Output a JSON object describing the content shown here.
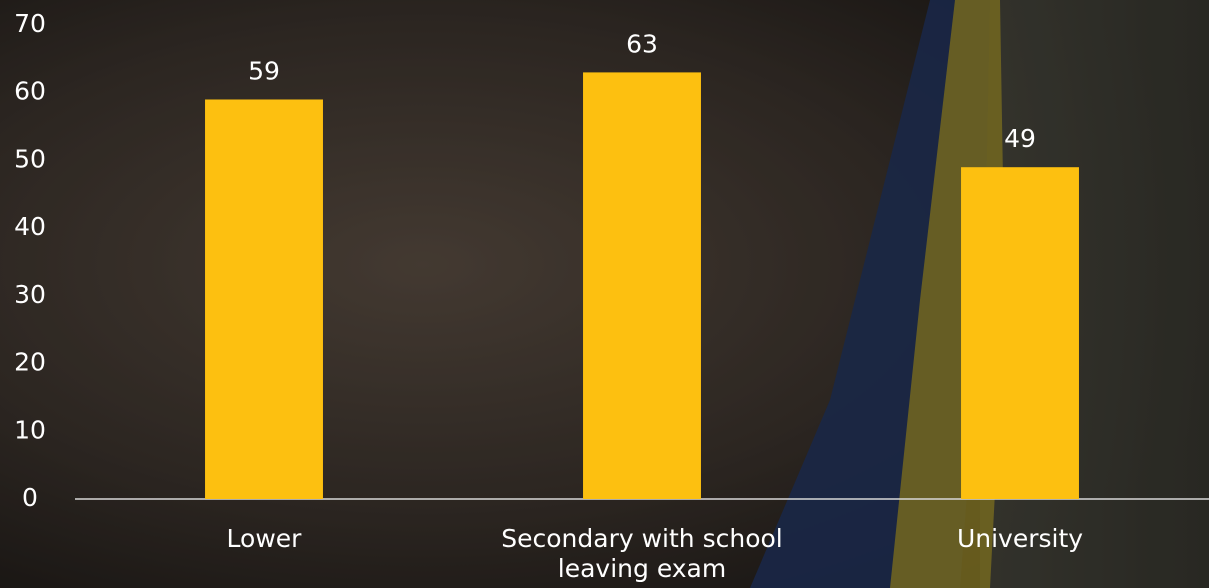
{
  "chart_data": {
    "type": "bar",
    "categories": [
      "Lower",
      "Secondary with school leaving exam",
      "University"
    ],
    "values": [
      59,
      63,
      49
    ],
    "color": "#fdc010",
    "ylim": [
      0,
      70
    ],
    "yticks": [
      0,
      10,
      20,
      30,
      40,
      50,
      60,
      70
    ]
  }
}
